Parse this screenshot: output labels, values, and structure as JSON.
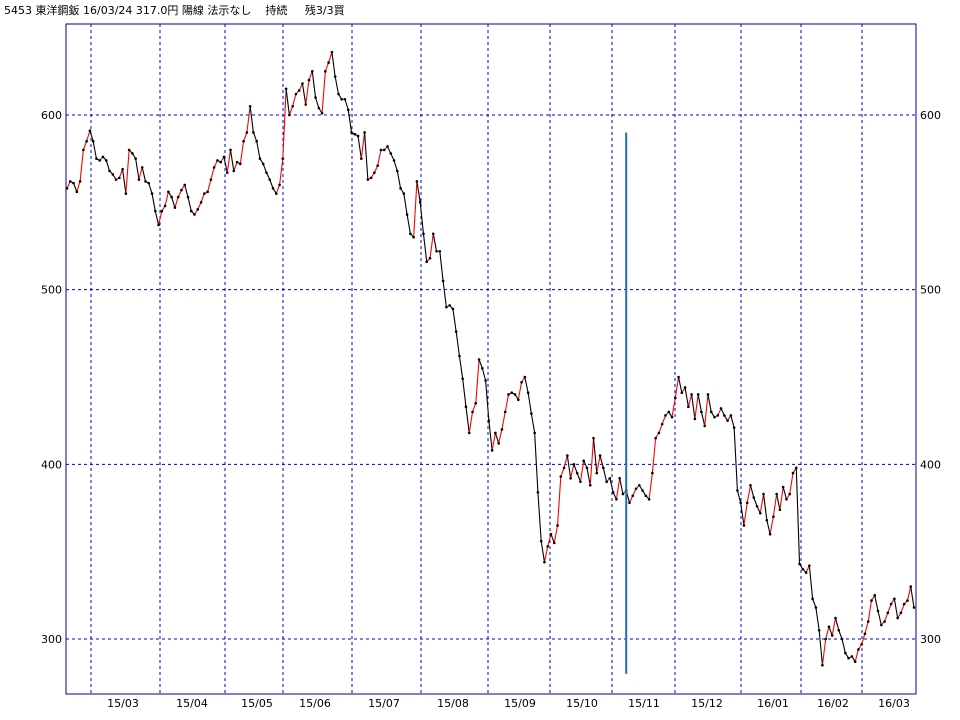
{
  "header": {
    "code": "5453",
    "name": "東洋鋼鈑",
    "date": "16/03/24",
    "price": "317.0円",
    "candle": "陽線",
    "indicator": "法示なし",
    "status": "持続",
    "remain": "残3/3買"
  },
  "colors": {
    "up": "#ff0000",
    "down": "#000000",
    "grid": "#0000c0",
    "frame": "#0000a0",
    "marker": "#1e6fb8"
  },
  "chart_data": {
    "type": "line",
    "title": "",
    "xlabel": "",
    "ylabel": "",
    "ylim": [
      270,
      640
    ],
    "y_ticks": [
      300,
      400,
      500,
      600
    ],
    "x_ticks": [
      "15/03",
      "15/04",
      "15/05",
      "15/06",
      "15/07",
      "15/08",
      "15/09",
      "15/10",
      "15/11",
      "15/12",
      "16/01",
      "16/02",
      "16/03"
    ],
    "grid": true,
    "marker_line": {
      "index": 171,
      "from": 280,
      "to": 590
    },
    "series": [
      {
        "values": [
          558,
          562,
          561,
          556,
          562,
          580,
          585,
          591,
          585,
          575,
          574,
          576,
          574,
          568,
          566,
          563,
          564,
          569,
          555,
          580,
          578,
          575,
          563,
          570,
          562,
          561,
          555,
          545,
          537,
          545,
          548,
          556,
          553,
          547,
          553,
          557,
          560,
          553,
          545,
          543,
          546,
          550,
          555,
          556,
          563,
          570,
          574,
          573,
          576,
          567,
          580,
          568,
          573,
          572,
          585,
          590,
          605,
          590,
          585,
          575,
          572,
          567,
          563,
          558,
          555,
          560,
          575,
          615,
          600,
          605,
          612,
          614,
          618,
          606,
          620,
          625,
          610,
          604,
          601,
          625,
          630,
          636,
          622,
          612,
          609,
          609,
          603,
          590,
          589,
          588,
          575,
          590,
          563,
          564,
          567,
          571,
          580,
          580,
          582,
          578,
          574,
          568,
          558,
          555,
          543,
          532,
          530,
          562,
          550,
          532,
          516,
          518,
          532,
          522,
          522,
          505,
          490,
          491,
          489,
          476,
          462,
          449,
          433,
          418,
          430,
          435,
          460,
          455,
          448,
          425,
          408,
          418,
          412,
          420,
          430,
          440,
          441,
          440,
          437,
          447,
          450,
          441,
          429,
          418,
          384,
          356,
          344,
          353,
          360,
          355,
          365,
          393,
          398,
          405,
          392,
          400,
          395,
          390,
          402,
          398,
          388,
          415,
          395,
          405,
          398,
          390,
          392,
          384,
          380,
          392,
          383,
          385,
          378,
          382,
          386,
          388,
          385,
          382,
          380,
          395,
          415,
          418,
          423,
          428,
          430,
          427,
          438,
          450,
          441,
          444,
          433,
          440,
          426,
          440,
          430,
          422,
          440,
          430,
          427,
          428,
          432,
          428,
          425,
          428,
          421,
          385,
          378,
          365,
          378,
          388,
          381,
          376,
          372,
          383,
          368,
          360,
          370,
          383,
          374,
          387,
          380,
          383,
          395,
          398,
          343,
          340,
          338,
          342,
          323,
          318,
          305,
          285,
          300,
          307,
          302,
          312,
          305,
          300,
          292,
          289,
          290,
          287,
          294,
          297,
          303,
          310,
          322,
          325,
          316,
          308,
          310,
          315,
          320,
          323,
          312,
          315,
          320,
          322,
          330,
          318
        ]
      }
    ]
  }
}
